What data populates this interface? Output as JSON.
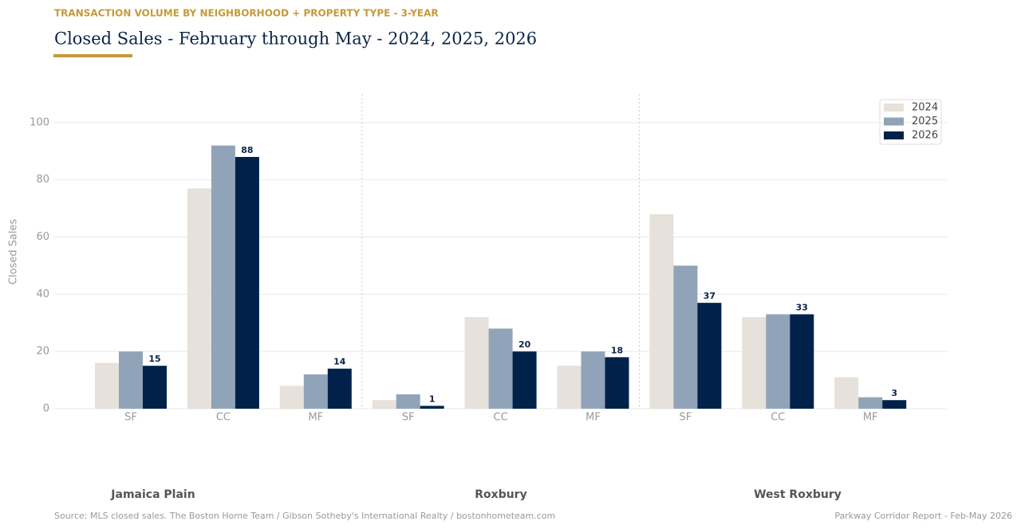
{
  "chart_data": {
    "type": "bar",
    "subtitle": "TRANSACTION VOLUME BY NEIGHBORHOOD + PROPERTY TYPE  -  3-YEAR",
    "title": "Closed Sales  -  February through May  -  2024, 2025, 2026",
    "y_label": "Closed Sales",
    "categories": [
      "SF",
      "CC",
      "MF",
      "SF",
      "CC",
      "MF",
      "SF",
      "CC",
      "MF"
    ],
    "groups": [
      "Jamaica Plain",
      "Roxbury",
      "West Roxbury"
    ],
    "series": [
      {
        "name": "2024",
        "color": "#e6e1da",
        "values": [
          16,
          77,
          8,
          3,
          32,
          15,
          68,
          32,
          11
        ]
      },
      {
        "name": "2025",
        "color": "#91a3b8",
        "values": [
          20,
          92,
          12,
          5,
          28,
          20,
          50,
          33,
          4
        ]
      },
      {
        "name": "2026",
        "color": "#00214a",
        "values": [
          15,
          88,
          14,
          1,
          20,
          18,
          37,
          33,
          3
        ],
        "show_labels": true
      }
    ],
    "ylim": [
      0,
      110
    ],
    "yticks": [
      0,
      20,
      40,
      60,
      80,
      100
    ],
    "grid": true,
    "legend": "upper right",
    "source": "Source: MLS closed sales. The Boston Home Team / Gibson Sotheby's International Realty / bostonhometeam.com",
    "footer_note": "Parkway Corridor Report  -  Feb-May 2026"
  }
}
